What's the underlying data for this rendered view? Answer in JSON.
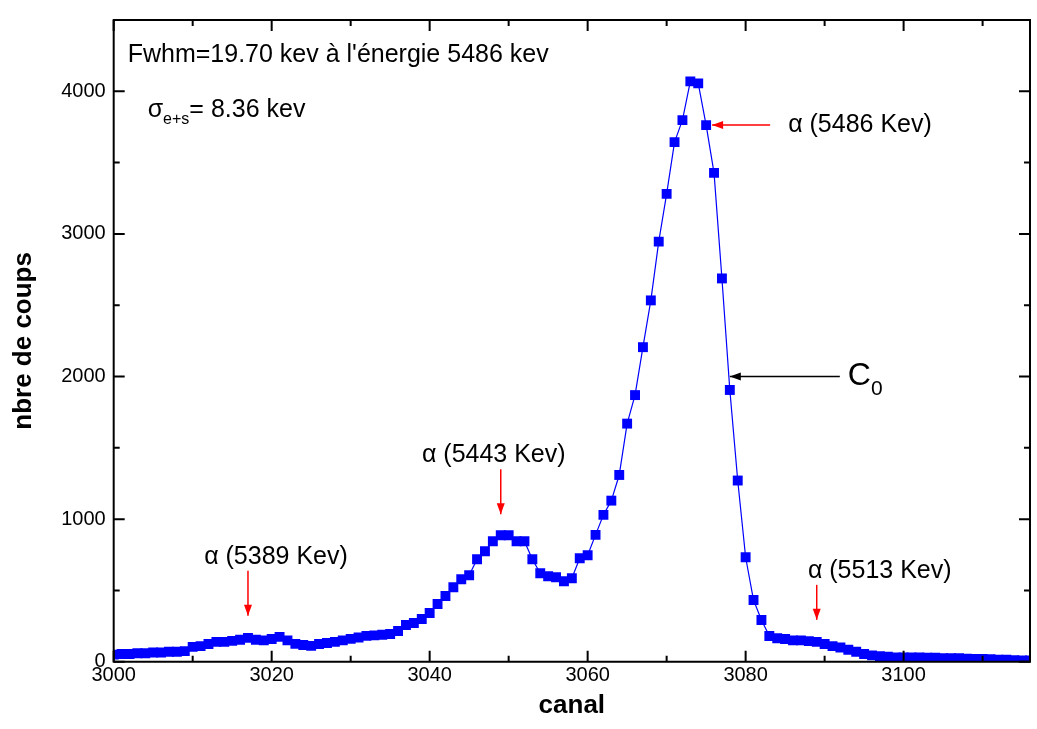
{
  "chart_data": {
    "type": "line",
    "xlabel": "canal",
    "ylabel": "nbre de coups",
    "xlim": [
      3000,
      3116
    ],
    "xticks": [
      3000,
      {
        "value": 3010,
        "label": null
      },
      3020,
      {
        "value": 3030,
        "label": null
      },
      3040,
      {
        "value": 3050,
        "label": null
      },
      3060,
      {
        "value": 3070,
        "label": null
      },
      3080,
      {
        "value": 3090,
        "label": null
      },
      3100,
      {
        "value": 3110,
        "label": null
      }
    ],
    "ylim": [
      0,
      4500
    ],
    "yticks": [
      0,
      {
        "value": 500,
        "label": null
      },
      1000,
      {
        "value": 1500,
        "label": null
      },
      2000,
      {
        "value": 2500,
        "label": null
      },
      3000,
      {
        "value": 3500,
        "label": null
      },
      4000
    ],
    "grid": false,
    "legend": false,
    "marker": "square",
    "line_style": "solid",
    "series": [
      {
        "color": "#0000ff",
        "x": [
          3000,
          3001,
          3002,
          3003,
          3004,
          3005,
          3006,
          3007,
          3008,
          3009,
          3010,
          3011,
          3012,
          3013,
          3014,
          3015,
          3016,
          3017,
          3018,
          3019,
          3020,
          3021,
          3022,
          3023,
          3024,
          3025,
          3026,
          3027,
          3028,
          3029,
          3030,
          3031,
          3032,
          3033,
          3034,
          3035,
          3036,
          3037,
          3038,
          3039,
          3040,
          3041,
          3042,
          3043,
          3044,
          3045,
          3046,
          3047,
          3048,
          3049,
          3050,
          3051,
          3052,
          3053,
          3054,
          3055,
          3056,
          3057,
          3058,
          3059,
          3060,
          3061,
          3062,
          3063,
          3064,
          3065,
          3066,
          3067,
          3068,
          3069,
          3070,
          3071,
          3072,
          3073,
          3074,
          3075,
          3076,
          3077,
          3078,
          3079,
          3080,
          3081,
          3082,
          3083,
          3084,
          3085,
          3086,
          3087,
          3088,
          3089,
          3090,
          3091,
          3092,
          3093,
          3094,
          3095,
          3096,
          3097,
          3098,
          3099,
          3100,
          3101,
          3102,
          3103,
          3104,
          3105,
          3106,
          3107,
          3108,
          3109,
          3110,
          3111,
          3112,
          3113,
          3114,
          3115,
          3116
        ],
        "values": [
          50,
          55,
          55,
          60,
          60,
          65,
          65,
          70,
          70,
          75,
          105,
          110,
          125,
          140,
          140,
          147,
          155,
          168,
          155,
          150,
          160,
          175,
          150,
          126,
          118,
          112,
          125,
          132,
          140,
          150,
          161,
          170,
          182,
          185,
          190,
          195,
          216,
          258,
          272,
          300,
          342,
          405,
          461,
          523,
          579,
          607,
          719,
          775,
          845,
          887,
          887,
          845,
          845,
          719,
          621,
          600,
          593,
          565,
          586,
          726,
          747,
          890,
          1030,
          1130,
          1310,
          1670,
          1870,
          2206,
          2534,
          2946,
          3281,
          3644,
          3798,
          4070,
          4056,
          3763,
          3428,
          2688,
          1906,
          1271,
          733,
          433,
          293,
          181,
          165,
          160,
          150,
          150,
          145,
          140,
          125,
          110,
          100,
          85,
          70,
          55,
          45,
          40,
          35,
          30,
          30,
          30,
          30,
          28,
          28,
          25,
          25,
          25,
          22,
          20,
          20,
          18,
          15,
          15,
          12,
          10,
          10
        ]
      }
    ],
    "annotations": [
      "Fwhm=19.70 kev à l'énergie 5486 kev",
      "σ$_{e+s}$= 8.36 kev",
      {
        "text": "α (5389 Kev)",
        "x": 3017,
        "y": 168
      },
      {
        "text": "α (5443 Kev)",
        "x": 3049,
        "y": 887
      },
      {
        "text": "α (5486 Kev)",
        "x": 3075,
        "y": 3763
      },
      {
        "text": "C$_{0}$",
        "x": 3078,
        "y": 2000
      },
      {
        "text": "α (5513 Kev)",
        "x": 3089,
        "y": 140
      }
    ]
  }
}
